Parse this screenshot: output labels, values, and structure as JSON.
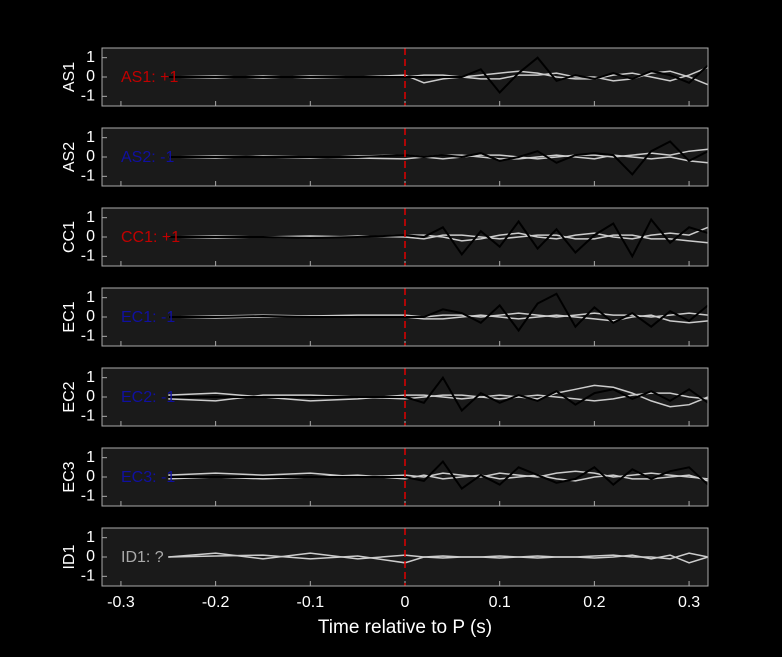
{
  "chart_data": [
    {
      "type": "line",
      "ylabel": "AS1",
      "annotation": "AS1: +1",
      "annotation_color": "#c00000",
      "x": [
        -0.25,
        -0.2,
        -0.15,
        -0.1,
        -0.05,
        0,
        0.02,
        0.04,
        0.06,
        0.08,
        0.1,
        0.12,
        0.14,
        0.16,
        0.18,
        0.2,
        0.22,
        0.24,
        0.26,
        0.28,
        0.3,
        0.32
      ],
      "series": [
        {
          "color": "#cccccc",
          "values": [
            0,
            0.05,
            -0.05,
            0.05,
            0,
            0.1,
            -0.3,
            -0.1,
            0,
            0.1,
            0.2,
            0.3,
            0.2,
            0,
            -0.1,
            -0.1,
            0.1,
            0.2,
            0,
            -0.2,
            0.1,
            0.5
          ]
        },
        {
          "color": "#cccccc",
          "values": [
            0,
            -0.05,
            0.05,
            -0.05,
            0,
            0,
            0.1,
            0.1,
            0,
            -0.1,
            -0.1,
            0.1,
            0.1,
            0.2,
            0,
            0,
            -0.2,
            -0.1,
            0.2,
            0.3,
            0,
            -0.4
          ]
        },
        {
          "color": "#000000",
          "values": [
            0,
            0,
            0,
            0,
            0,
            0,
            0,
            0,
            0,
            0.4,
            -0.8,
            0.2,
            1,
            -0.2,
            0.1,
            -0.1,
            0.2,
            -0.1,
            0.3,
            0.1,
            -0.3,
            0.6
          ]
        }
      ],
      "xlim": [
        -0.32,
        0.32
      ],
      "xticks": [
        -0.3,
        -0.2,
        -0.1,
        0,
        0.1,
        0.2,
        0.3
      ],
      "ylim": [
        -1.5,
        1.5
      ],
      "yticks": [
        1,
        0,
        -1
      ],
      "pick_time": 0
    },
    {
      "type": "line",
      "ylabel": "AS2",
      "annotation": "AS2: -1",
      "annotation_color": "#1010a0",
      "x": [
        -0.25,
        -0.2,
        -0.15,
        -0.1,
        -0.05,
        0,
        0.02,
        0.04,
        0.06,
        0.08,
        0.1,
        0.12,
        0.14,
        0.16,
        0.18,
        0.2,
        0.22,
        0.24,
        0.26,
        0.28,
        0.3,
        0.32
      ],
      "series": [
        {
          "color": "#cccccc",
          "values": [
            0,
            0.05,
            0,
            -0.05,
            0.05,
            0.1,
            0,
            -0.1,
            0,
            0.1,
            0.1,
            0,
            -0.1,
            0,
            0.1,
            0.1,
            0,
            0.1,
            0.2,
            0.1,
            0.3,
            0.4
          ]
        },
        {
          "color": "#cccccc",
          "values": [
            0,
            -0.05,
            0.05,
            0,
            -0.05,
            -0.1,
            0,
            0.1,
            0.1,
            0,
            -0.1,
            -0.1,
            0,
            0.1,
            0,
            -0.1,
            0.1,
            0,
            -0.1,
            0,
            -0.2,
            -0.3
          ]
        },
        {
          "color": "#000000",
          "values": [
            0,
            0,
            0,
            0,
            0,
            0.1,
            0,
            0.1,
            0,
            0.2,
            -0.2,
            0,
            0.3,
            -0.3,
            0.1,
            0.2,
            0.1,
            -0.9,
            0.3,
            0.8,
            -0.2,
            0.3
          ]
        }
      ],
      "xlim": [
        -0.32,
        0.32
      ],
      "xticks": [
        -0.3,
        -0.2,
        -0.1,
        0,
        0.1,
        0.2,
        0.3
      ],
      "ylim": [
        -1.5,
        1.5
      ],
      "yticks": [
        1,
        0,
        -1
      ],
      "pick_time": 0
    },
    {
      "type": "line",
      "ylabel": "CC1",
      "annotation": "CC1: +1",
      "annotation_color": "#c00000",
      "x": [
        -0.25,
        -0.2,
        -0.15,
        -0.1,
        -0.05,
        0,
        0.02,
        0.04,
        0.06,
        0.08,
        0.1,
        0.12,
        0.14,
        0.16,
        0.18,
        0.2,
        0.22,
        0.24,
        0.26,
        0.28,
        0.3,
        0.32
      ],
      "series": [
        {
          "color": "#cccccc",
          "values": [
            0,
            0.05,
            0,
            0.05,
            0,
            0.1,
            0.1,
            0,
            -0.2,
            -0.1,
            0.1,
            0.2,
            0,
            -0.1,
            0.1,
            0.2,
            0,
            -0.1,
            0.1,
            0.2,
            0.1,
            0.5
          ]
        },
        {
          "color": "#cccccc",
          "values": [
            0,
            -0.05,
            0,
            -0.05,
            0.05,
            0,
            -0.1,
            0.1,
            0.1,
            0,
            -0.1,
            0,
            0.1,
            0.1,
            -0.1,
            -0.1,
            0.1,
            0.1,
            -0.1,
            -0.1,
            -0.2,
            -0.3
          ]
        },
        {
          "color": "#000000",
          "values": [
            0,
            0,
            0,
            -0.05,
            0,
            0.1,
            0,
            0.5,
            -0.9,
            0.3,
            -0.5,
            0.8,
            -0.6,
            0.4,
            -0.8,
            0.1,
            0.7,
            -1,
            0.9,
            -0.3,
            0.5,
            0.2
          ]
        }
      ],
      "xlim": [
        -0.32,
        0.32
      ],
      "xticks": [
        -0.3,
        -0.2,
        -0.1,
        0,
        0.1,
        0.2,
        0.3
      ],
      "ylim": [
        -1.5,
        1.5
      ],
      "yticks": [
        1,
        0,
        -1
      ],
      "pick_time": 0
    },
    {
      "type": "line",
      "ylabel": "EC1",
      "annotation": "EC1: -1",
      "annotation_color": "#1010a0",
      "x": [
        -0.25,
        -0.2,
        -0.15,
        -0.1,
        -0.05,
        0,
        0.02,
        0.04,
        0.06,
        0.08,
        0.1,
        0.12,
        0.14,
        0.16,
        0.18,
        0.2,
        0.22,
        0.24,
        0.26,
        0.28,
        0.3,
        0.32
      ],
      "series": [
        {
          "color": "#cccccc",
          "values": [
            0,
            0.05,
            0.1,
            0.05,
            0,
            0,
            -0.1,
            -0.1,
            0,
            0.1,
            0,
            -0.1,
            0,
            0.1,
            0,
            -0.1,
            -0.2,
            0,
            0.1,
            -0.2,
            -0.3,
            -0.2
          ]
        },
        {
          "color": "#cccccc",
          "values": [
            0,
            -0.05,
            0,
            0.05,
            0.1,
            0.1,
            0,
            0.1,
            0.1,
            0,
            0.1,
            0.2,
            0.1,
            0,
            0.1,
            0.2,
            0.1,
            0.1,
            0,
            0.1,
            0.2,
            0.1
          ]
        },
        {
          "color": "#000000",
          "values": [
            0,
            0,
            0.05,
            0,
            0,
            0,
            0,
            0.4,
            0.2,
            -0.3,
            0.6,
            -0.7,
            0.7,
            1.2,
            -0.5,
            0.5,
            -0.3,
            0.2,
            -0.5,
            0.3,
            -0.2,
            0.6
          ]
        }
      ],
      "xlim": [
        -0.32,
        0.32
      ],
      "xticks": [
        -0.3,
        -0.2,
        -0.1,
        0,
        0.1,
        0.2,
        0.3
      ],
      "ylim": [
        -1.5,
        1.5
      ],
      "yticks": [
        1,
        0,
        -1
      ],
      "pick_time": 0
    },
    {
      "type": "line",
      "ylabel": "EC2",
      "annotation": "EC2: -1",
      "annotation_color": "#1010a0",
      "x": [
        -0.25,
        -0.2,
        -0.15,
        -0.1,
        -0.05,
        0,
        0.02,
        0.04,
        0.06,
        0.08,
        0.1,
        0.12,
        0.14,
        0.16,
        0.18,
        0.2,
        0.22,
        0.24,
        0.26,
        0.28,
        0.3,
        0.32
      ],
      "series": [
        {
          "color": "#cccccc",
          "values": [
            0.1,
            0.2,
            0,
            -0.2,
            -0.1,
            0.1,
            0.1,
            0,
            -0.1,
            0,
            0.1,
            0,
            -0.1,
            0.2,
            0.4,
            0.6,
            0.5,
            0.2,
            -0.2,
            -0.5,
            -0.4,
            0
          ]
        },
        {
          "color": "#cccccc",
          "values": [
            -0.1,
            -0.2,
            0.1,
            0.1,
            0,
            -0.1,
            0,
            0.1,
            0.1,
            0,
            -0.1,
            0,
            0.1,
            0,
            -0.1,
            -0.2,
            -0.1,
            0.1,
            0.2,
            0.2,
            0,
            -0.1
          ]
        },
        {
          "color": "#000000",
          "values": [
            0,
            0,
            0,
            0,
            0,
            0,
            -0.3,
            1,
            -0.7,
            0.2,
            -0.3,
            0.1,
            -0.2,
            0.3,
            -0.4,
            0.2,
            0.4,
            -0.1,
            0.3,
            -0.2,
            0.4,
            -0.3
          ]
        }
      ],
      "xlim": [
        -0.32,
        0.32
      ],
      "xticks": [
        -0.3,
        -0.2,
        -0.1,
        0,
        0.1,
        0.2,
        0.3
      ],
      "ylim": [
        -1.5,
        1.5
      ],
      "yticks": [
        1,
        0,
        -1
      ],
      "pick_time": 0
    },
    {
      "type": "line",
      "ylabel": "EC3",
      "annotation": "EC3: -1",
      "annotation_color": "#1010a0",
      "x": [
        -0.25,
        -0.2,
        -0.15,
        -0.1,
        -0.05,
        0,
        0.02,
        0.04,
        0.06,
        0.08,
        0.1,
        0.12,
        0.14,
        0.16,
        0.18,
        0.2,
        0.22,
        0.24,
        0.26,
        0.28,
        0.3,
        0.32
      ],
      "series": [
        {
          "color": "#cccccc",
          "values": [
            0.1,
            0.2,
            0.1,
            0.2,
            0,
            0.1,
            0,
            0.2,
            0.1,
            0,
            0.2,
            0.1,
            0,
            0.2,
            0.3,
            0.2,
            0,
            0.1,
            0.2,
            0.1,
            0,
            -0.1
          ]
        },
        {
          "color": "#cccccc",
          "values": [
            -0.1,
            0,
            -0.1,
            0,
            0.1,
            -0.1,
            0.1,
            -0.1,
            0,
            0.1,
            -0.1,
            0,
            0.1,
            -0.1,
            -0.2,
            0,
            0.1,
            -0.1,
            -0.1,
            0,
            0.1,
            -0.2
          ]
        },
        {
          "color": "#000000",
          "values": [
            0,
            0,
            0,
            0,
            0,
            0,
            -0.2,
            0.8,
            -0.6,
            0.1,
            -0.4,
            0.5,
            0.1,
            -0.3,
            -0.1,
            0.5,
            -0.4,
            0.4,
            -0.1,
            0.3,
            0.5,
            -0.4
          ]
        }
      ],
      "xlim": [
        -0.32,
        0.32
      ],
      "xticks": [
        -0.3,
        -0.2,
        -0.1,
        0,
        0.1,
        0.2,
        0.3
      ],
      "ylim": [
        -1.5,
        1.5
      ],
      "yticks": [
        1,
        0,
        -1
      ],
      "pick_time": 0
    },
    {
      "type": "line",
      "ylabel": "ID1",
      "annotation": "ID1: ?",
      "annotation_color": "#aaaaaa",
      "x": [
        -0.25,
        -0.2,
        -0.15,
        -0.1,
        -0.05,
        0,
        0.02,
        0.04,
        0.06,
        0.08,
        0.1,
        0.12,
        0.14,
        0.16,
        0.18,
        0.2,
        0.22,
        0.24,
        0.26,
        0.28,
        0.3,
        0.32
      ],
      "series": [
        {
          "color": "#cccccc",
          "values": [
            0,
            0.2,
            -0.1,
            0.2,
            -0.1,
            0.1,
            0,
            0.05,
            0,
            0,
            0.05,
            0,
            -0.05,
            0,
            0,
            0.05,
            0.1,
            0,
            0,
            -0.1,
            0.2,
            0
          ]
        },
        {
          "color": "#cccccc",
          "values": [
            0,
            0.05,
            0.1,
            -0.1,
            0.05,
            -0.3,
            0,
            -0.05,
            0,
            0,
            -0.05,
            0,
            0.05,
            0,
            0,
            -0.05,
            0,
            0.1,
            -0.1,
            0.1,
            -0.3,
            0
          ]
        }
      ],
      "xlim": [
        -0.32,
        0.32
      ],
      "xticks": [
        -0.3,
        -0.2,
        -0.1,
        0,
        0.1,
        0.2,
        0.3
      ],
      "ylim": [
        -1.5,
        1.5
      ],
      "yticks": [
        1,
        0,
        -1
      ],
      "pick_time": 0,
      "xlabel": "Time relative to P (s)"
    }
  ]
}
